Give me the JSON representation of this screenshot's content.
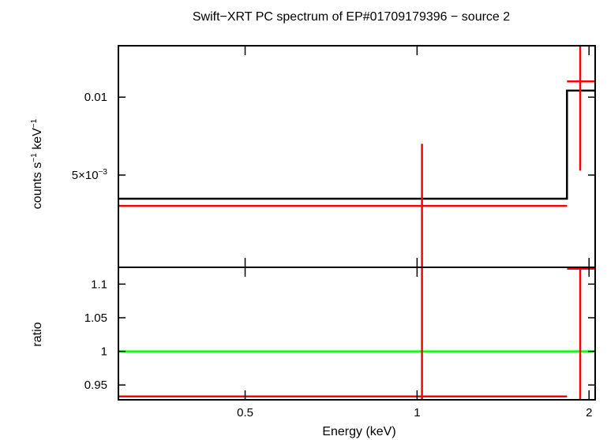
{
  "chart_data": {
    "type": "line",
    "title": "Swift−XRT PC spectrum of EP#01709179396 − source 2",
    "xlabel": "Energy (keV)",
    "xscale": "log",
    "xlim": [
      0.3,
      2.05
    ],
    "x_ticks": [
      {
        "value": 0.5,
        "label": "0.5"
      },
      {
        "value": 1,
        "label": "1"
      },
      {
        "value": 2,
        "label": "2"
      }
    ],
    "panels": [
      {
        "name": "spectrum",
        "ylabel_base": "counts s",
        "ylabel_sup1": "−1",
        "ylabel_mid": " keV",
        "ylabel_sup2": "−1",
        "yscale": "log",
        "ylim": [
          0.0022,
          0.0158
        ],
        "y_ticks": [
          {
            "value": 0.01,
            "label": "0.01",
            "sup": ""
          },
          {
            "value": 0.005,
            "label": "5×10",
            "sup": "−3"
          }
        ],
        "series": [
          {
            "name": "model",
            "color": "#000000",
            "style": "step",
            "points": [
              [
                0.3,
                0.00405
              ],
              [
                1.83,
                0.00405
              ],
              [
                1.83,
                0.0106
              ],
              [
                2.05,
                0.0106
              ]
            ]
          },
          {
            "name": "data",
            "color": "#ff0000",
            "style": "errorbar",
            "points": [
              {
                "x": 1.02,
                "xlo": 0.3,
                "xhi": 1.83,
                "y": 0.0038,
                "ylo": 0.0,
                "yhi": 0.0066
              },
              {
                "x": 1.93,
                "xlo": 1.83,
                "xhi": 2.05,
                "y": 0.0115,
                "ylo": 0.0052,
                "yhi": 0.0158
              }
            ]
          }
        ]
      },
      {
        "name": "ratio",
        "ylabel": "ratio",
        "yscale": "linear",
        "ylim": [
          0.928,
          1.125
        ],
        "y_ticks": [
          {
            "value": 0.95,
            "label": "0.95"
          },
          {
            "value": 1,
            "label": "1"
          },
          {
            "value": 1.05,
            "label": "1.05"
          },
          {
            "value": 1.1,
            "label": "1.1"
          }
        ],
        "series": [
          {
            "name": "unity",
            "color": "#00ff00",
            "style": "hline",
            "y": 1.0
          },
          {
            "name": "data",
            "color": "#ff0000",
            "style": "errorbar",
            "points": [
              {
                "x": 1.02,
                "xlo": 0.3,
                "xhi": 1.83,
                "y": 0.933,
                "ylo": 0.928,
                "yhi": 1.125
              },
              {
                "x": 1.93,
                "xlo": 1.83,
                "xhi": 2.05,
                "y": 1.123,
                "ylo": 0.928,
                "yhi": 1.125
              }
            ]
          }
        ]
      }
    ]
  }
}
